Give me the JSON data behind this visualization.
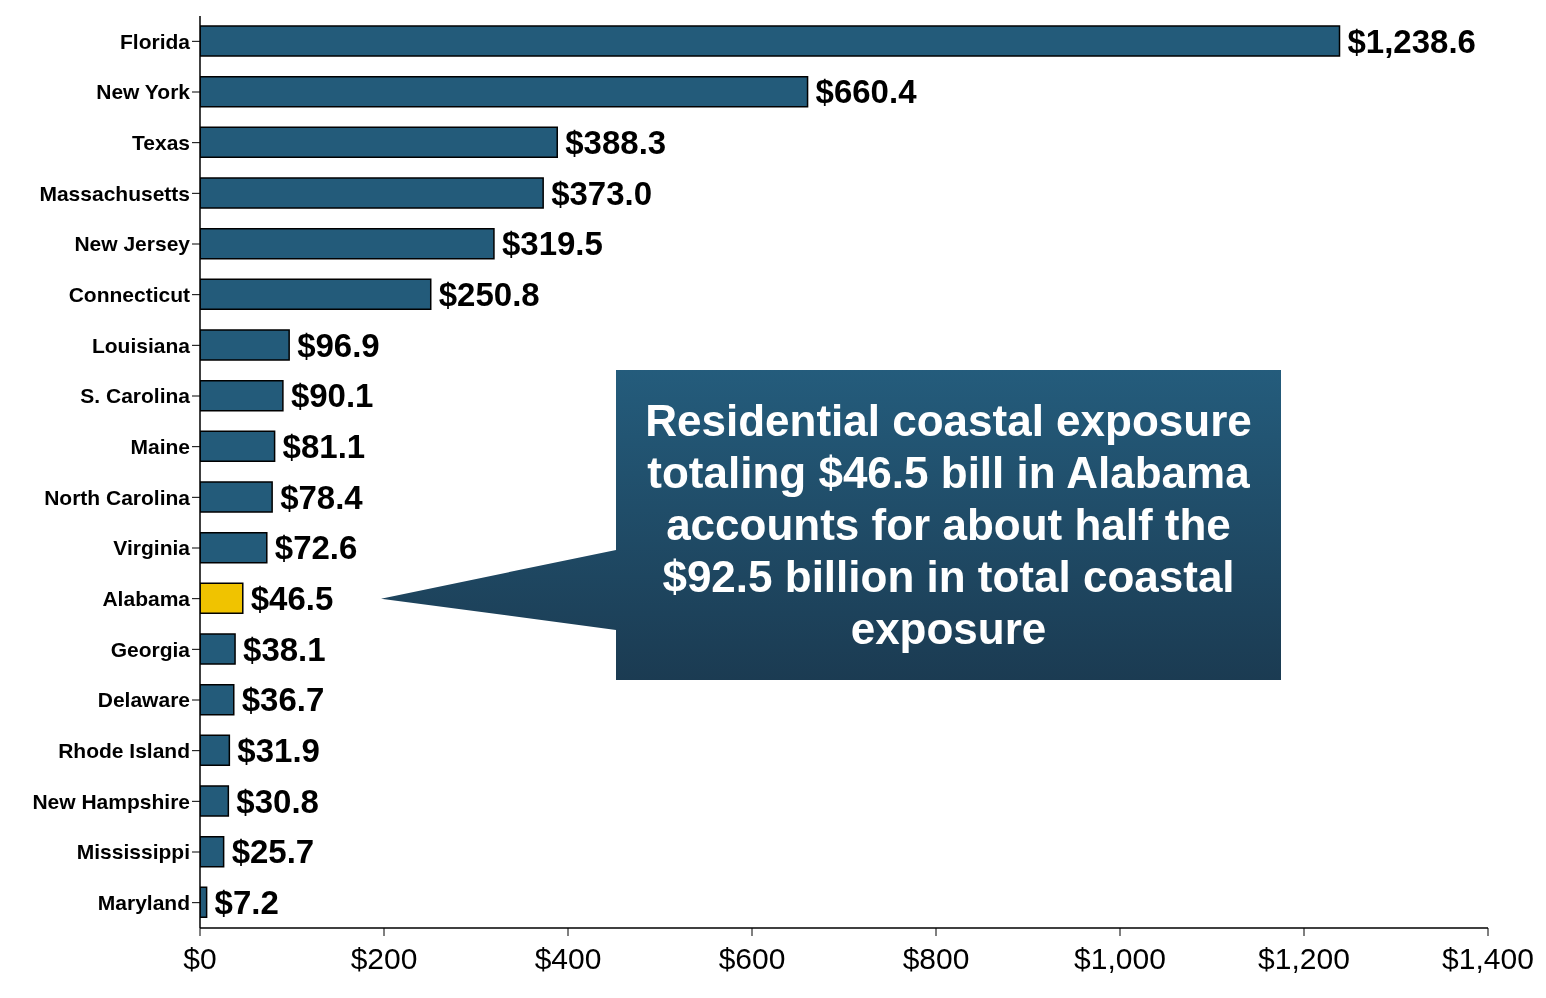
{
  "chart_data": {
    "type": "bar",
    "orientation": "horizontal",
    "categories": [
      "Florida",
      "New York",
      "Texas",
      "Massachusetts",
      "New Jersey",
      "Connecticut",
      "Louisiana",
      "S. Carolina",
      "Maine",
      "North Carolina",
      "Virginia",
      "Alabama",
      "Georgia",
      "Delaware",
      "Rhode Island",
      "New Hampshire",
      "Mississippi",
      "Maryland"
    ],
    "values": [
      1238.6,
      660.4,
      388.3,
      373.0,
      319.5,
      250.8,
      96.9,
      90.1,
      81.1,
      78.4,
      72.6,
      46.5,
      38.1,
      36.7,
      31.9,
      30.8,
      25.7,
      7.2
    ],
    "value_labels": [
      "$1,238.6",
      "$660.4",
      "$388.3",
      "$373.0",
      "$319.5",
      "$250.8",
      "$96.9",
      "$90.1",
      "$81.1",
      "$78.4",
      "$72.6",
      "$46.5",
      "$38.1",
      "$36.7",
      "$31.9",
      "$30.8",
      "$25.7",
      "$7.2"
    ],
    "colors": [
      "#235b7a",
      "#235b7a",
      "#235b7a",
      "#235b7a",
      "#235b7a",
      "#235b7a",
      "#235b7a",
      "#235b7a",
      "#235b7a",
      "#235b7a",
      "#235b7a",
      "#f0c300",
      "#235b7a",
      "#235b7a",
      "#235b7a",
      "#235b7a",
      "#235b7a",
      "#235b7a"
    ],
    "xlim": [
      0,
      1400
    ],
    "xticks": [
      {
        "value": 0,
        "label": "$0"
      },
      {
        "value": 200,
        "label": "$200"
      },
      {
        "value": 400,
        "label": "$400"
      },
      {
        "value": 600,
        "label": "$600"
      },
      {
        "value": 800,
        "label": "$800"
      },
      {
        "value": 1000,
        "label": "$1,000"
      },
      {
        "value": 1200,
        "label": "$1,200"
      },
      {
        "value": 1400,
        "label": "$1,400"
      }
    ],
    "grid": false,
    "legend": false,
    "annotations": [
      "Residential coastal exposure totaling $46.5 bill in Alabama accounts for about half the $92.5 billion in total coastal exposure"
    ]
  }
}
